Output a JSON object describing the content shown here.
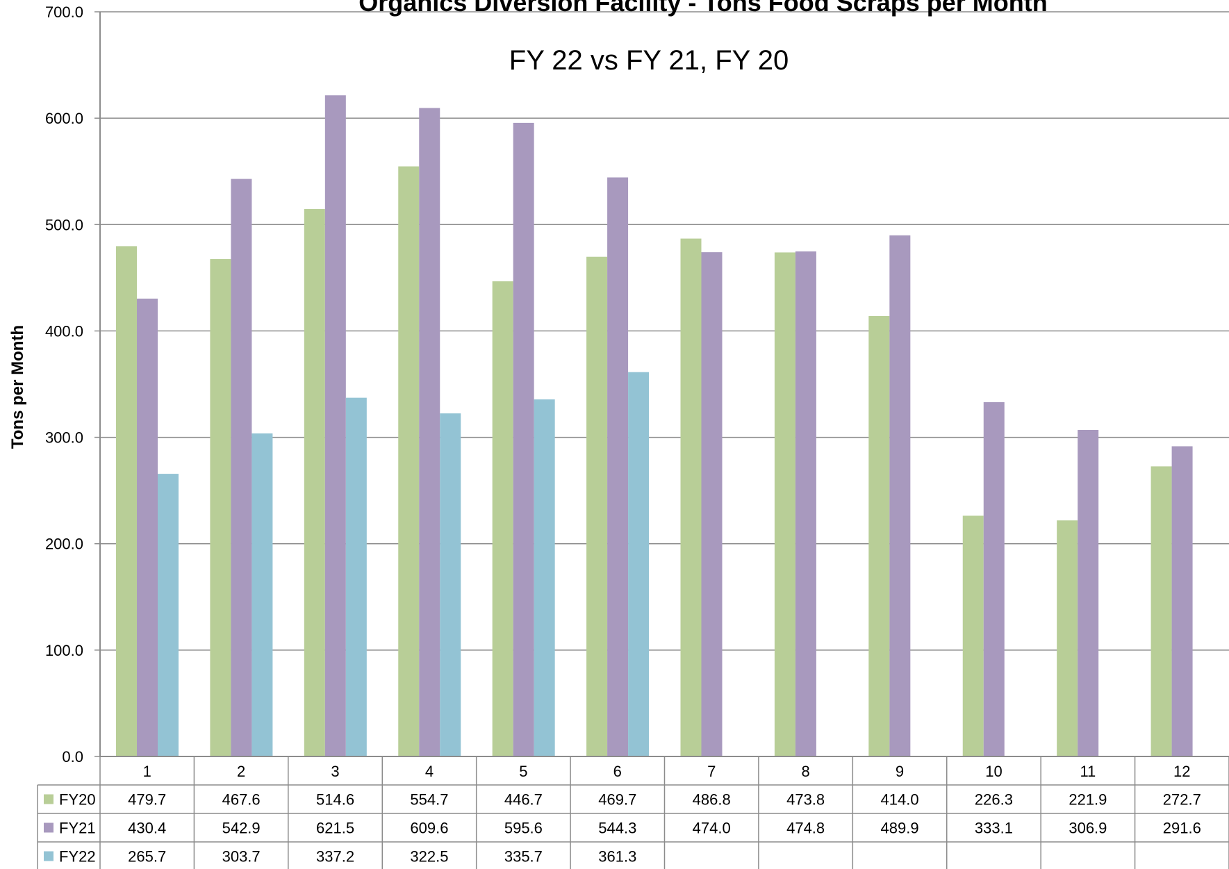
{
  "chart_data": {
    "type": "bar",
    "title": "Organics Diversion Facility - Tons Food Scraps per Month",
    "subtitle": "FY 22 vs FY 21, FY 20",
    "xlabel": "",
    "ylabel": "Tons per Month",
    "ylim": [
      0,
      700
    ],
    "yticks": [
      "0.0",
      "100.0",
      "200.0",
      "300.0",
      "400.0",
      "500.0",
      "600.0",
      "700.0"
    ],
    "categories": [
      "1",
      "2",
      "3",
      "4",
      "5",
      "6",
      "7",
      "8",
      "9",
      "10",
      "11",
      "12"
    ],
    "grid": true,
    "legend": "data table below chart",
    "series": [
      {
        "name": "FY20",
        "color": "#b8ce97",
        "values": [
          479.7,
          467.6,
          514.6,
          554.7,
          446.7,
          469.7,
          486.8,
          473.8,
          414.0,
          226.3,
          221.9,
          272.7
        ],
        "labels": [
          "479.7",
          "467.6",
          "514.6",
          "554.7",
          "446.7",
          "469.7",
          "486.8",
          "473.8",
          "414.0",
          "226.3",
          "221.9",
          "272.7"
        ]
      },
      {
        "name": "FY21",
        "color": "#a899be",
        "values": [
          430.4,
          542.9,
          621.5,
          609.6,
          595.6,
          544.3,
          474.0,
          474.8,
          489.9,
          333.1,
          306.9,
          291.6
        ],
        "labels": [
          "430.4",
          "542.9",
          "621.5",
          "609.6",
          "595.6",
          "544.3",
          "474.0",
          "474.8",
          "489.9",
          "333.1",
          "306.9",
          "291.6"
        ]
      },
      {
        "name": "FY22",
        "color": "#93c3d4",
        "values": [
          265.7,
          303.7,
          337.2,
          322.5,
          335.7,
          361.3,
          null,
          null,
          null,
          null,
          null,
          null
        ],
        "labels": [
          "265.7",
          "303.7",
          "337.2",
          "322.5",
          "335.7",
          "361.3",
          "",
          "",
          "",
          "",
          "",
          ""
        ]
      }
    ]
  }
}
